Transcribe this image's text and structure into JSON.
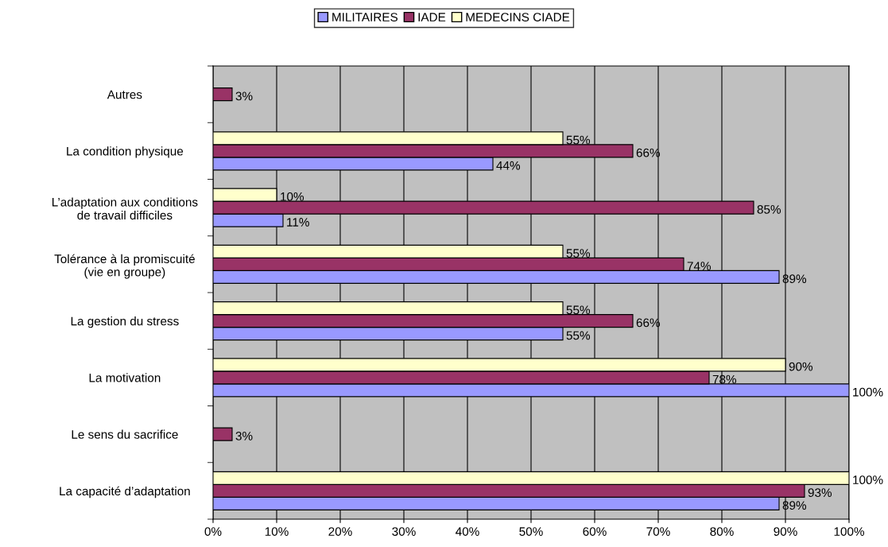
{
  "chart_data": {
    "type": "bar",
    "orientation": "horizontal",
    "categories": [
      "Autres",
      "La condition physique",
      "L’adaptation aux conditions\nde travail difficiles",
      "Tolérance à la promiscuité\n(vie en groupe)",
      "La gestion du stress",
      "La motivation",
      "Le sens du sacrifice",
      "La capacité d’adaptation"
    ],
    "series": [
      {
        "name": "MILITAIRES",
        "color": "#9999ff",
        "values": [
          null,
          44,
          11,
          89,
          55,
          100,
          null,
          89
        ],
        "value_labels": [
          null,
          "44%",
          "11%",
          "89%",
          "55%",
          "100%",
          null,
          "89%"
        ]
      },
      {
        "name": "IADE",
        "color": "#993366",
        "values": [
          3,
          66,
          85,
          74,
          66,
          78,
          3,
          93
        ],
        "value_labels": [
          "3%",
          "66%",
          "85%",
          "74%",
          "66%",
          "78%",
          "3%",
          "93%"
        ]
      },
      {
        "name": "MEDECINS CIADE",
        "color": "#ffffcc",
        "values": [
          null,
          55,
          10,
          55,
          55,
          90,
          null,
          100
        ],
        "value_labels": [
          null,
          "55%",
          "10%",
          "55%",
          "55%",
          "90%",
          null,
          "100%"
        ]
      }
    ],
    "xlim": [
      0,
      100
    ],
    "xticks": [
      {
        "value": 0,
        "label": "0%"
      },
      {
        "value": 10,
        "label": "10%"
      },
      {
        "value": 20,
        "label": "20%"
      },
      {
        "value": 30,
        "label": "30%"
      },
      {
        "value": 40,
        "label": "40%"
      },
      {
        "value": 50,
        "label": "50%"
      },
      {
        "value": 60,
        "label": "60%"
      },
      {
        "value": 70,
        "label": "70%"
      },
      {
        "value": 80,
        "label": "80%"
      },
      {
        "value": 90,
        "label": "90%"
      },
      {
        "value": 100,
        "label": "100%"
      }
    ],
    "grid": "x",
    "legend": "top"
  }
}
